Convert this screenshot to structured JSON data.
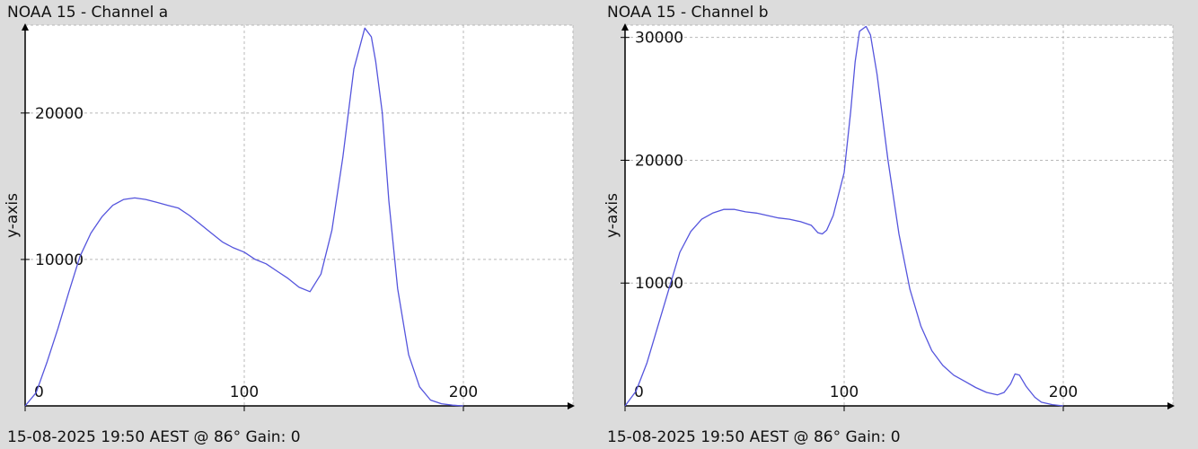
{
  "chart_data": [
    {
      "type": "line",
      "title": "NOAA 15 - Channel a",
      "footer": "15-08-2025 19:50 AEST @ 86° Gain: 0\u0003",
      "ylabel": "y-axis",
      "xlim": [
        0,
        250
      ],
      "ylim": [
        0,
        26000
      ],
      "xticks": [
        0,
        100,
        200
      ],
      "yticks": [
        10000,
        20000
      ],
      "grid": true,
      "line_color": "#5555dd",
      "series": [
        {
          "x": [
            0,
            5,
            10,
            15,
            20,
            25,
            30,
            35,
            40,
            45,
            50,
            55,
            60,
            65,
            70,
            75,
            80,
            85,
            90,
            95,
            100,
            105,
            110,
            115,
            120,
            125,
            130,
            135,
            140,
            145,
            150,
            155,
            158,
            160,
            163,
            166,
            170,
            175,
            180,
            185,
            190,
            195,
            200
          ],
          "y": [
            0,
            900,
            3000,
            5300,
            7800,
            10200,
            11800,
            12900,
            13700,
            14100,
            14200,
            14100,
            13900,
            13700,
            13500,
            13000,
            12400,
            11800,
            11200,
            10800,
            10500,
            10000,
            9700,
            9200,
            8700,
            8100,
            7800,
            9000,
            12000,
            17000,
            23000,
            25800,
            25200,
            23500,
            20000,
            14000,
            8000,
            3500,
            1300,
            400,
            150,
            50,
            0
          ]
        }
      ]
    },
    {
      "type": "line",
      "title": "NOAA 15 - Channel b",
      "footer": "15-08-2025 19:50 AEST @ 86° Gain: 0\u0003",
      "ylabel": "y-axis",
      "xlim": [
        0,
        250
      ],
      "ylim": [
        0,
        31000
      ],
      "xticks": [
        0,
        100,
        200
      ],
      "yticks": [
        10000,
        20000,
        30000
      ],
      "grid": true,
      "line_color": "#5555dd",
      "series": [
        {
          "x": [
            0,
            5,
            10,
            15,
            20,
            25,
            30,
            35,
            40,
            45,
            50,
            55,
            60,
            65,
            70,
            75,
            80,
            85,
            88,
            90,
            92,
            95,
            100,
            103,
            105,
            107,
            110,
            112,
            115,
            120,
            125,
            130,
            135,
            140,
            145,
            150,
            155,
            160,
            165,
            170,
            173,
            176,
            178,
            180,
            183,
            187,
            190,
            195,
            200
          ],
          "y": [
            0,
            1200,
            3500,
            6500,
            9500,
            12500,
            14200,
            15200,
            15700,
            16000,
            16000,
            15800,
            15700,
            15500,
            15300,
            15200,
            15000,
            14700,
            14100,
            14000,
            14300,
            15500,
            19000,
            24000,
            28000,
            30500,
            30900,
            30200,
            27000,
            20000,
            14000,
            9500,
            6500,
            4500,
            3300,
            2500,
            2000,
            1500,
            1100,
            900,
            1100,
            1800,
            2600,
            2500,
            1600,
            700,
            300,
            100,
            0
          ]
        }
      ]
    }
  ]
}
